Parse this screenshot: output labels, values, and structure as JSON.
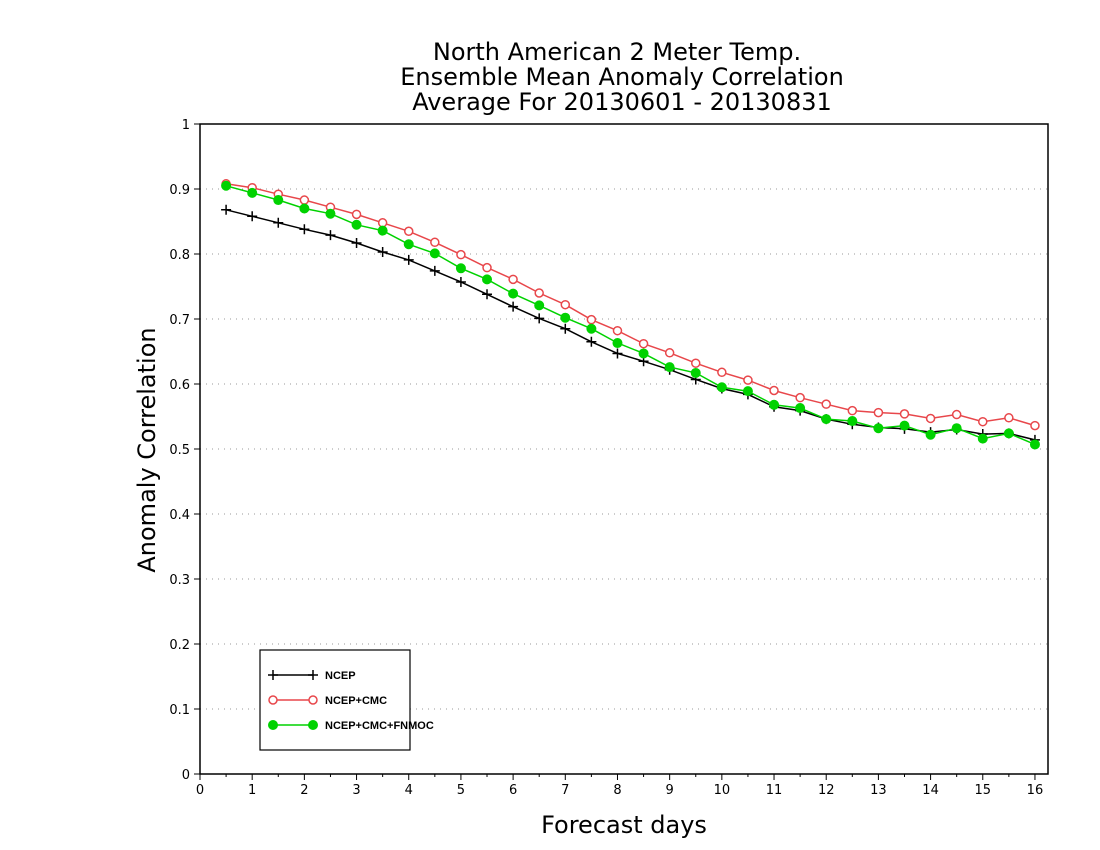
{
  "chart_data": {
    "type": "line",
    "title": [
      "North American 2 Meter Temp.",
      "Ensemble Mean Anomaly Correlation",
      "Average For 20130601 - 20130831"
    ],
    "xlabel": "Forecast days",
    "ylabel": "Anomaly Correlation",
    "xlim": [
      0,
      16.25
    ],
    "ylim": [
      0,
      1
    ],
    "x_ticks": [
      0,
      1,
      2,
      3,
      4,
      5,
      6,
      7,
      8,
      9,
      10,
      11,
      12,
      13,
      14,
      15,
      16
    ],
    "y_ticks": [
      0,
      0.1,
      0.2,
      0.3,
      0.4,
      0.5,
      0.6,
      0.7,
      0.8,
      0.9,
      1
    ],
    "y_tick_labels": [
      "0",
      "0.1",
      "0.2",
      "0.3",
      "0.4",
      "0.5",
      "0.6",
      "0.7",
      "0.8",
      "0.9",
      "1"
    ],
    "grid": "horizontal dotted",
    "legend_position": "bottom-left",
    "x": [
      0.5,
      1,
      1.5,
      2,
      2.5,
      3,
      3.5,
      4,
      4.5,
      5,
      5.5,
      6,
      6.5,
      7,
      7.5,
      8,
      8.5,
      9,
      9.5,
      10,
      10.5,
      11,
      11.5,
      12,
      12.5,
      13,
      13.5,
      14,
      14.5,
      15,
      15.5,
      16
    ],
    "series": [
      {
        "name": "NCEP",
        "color": "#000000",
        "marker": "plus",
        "values": [
          0.868,
          0.858,
          0.848,
          0.838,
          0.829,
          0.817,
          0.803,
          0.791,
          0.774,
          0.757,
          0.738,
          0.719,
          0.701,
          0.685,
          0.665,
          0.647,
          0.635,
          0.622,
          0.607,
          0.593,
          0.584,
          0.565,
          0.559,
          0.546,
          0.538,
          0.533,
          0.531,
          0.526,
          0.53,
          0.523,
          0.524,
          0.514
        ]
      },
      {
        "name": "NCEP+CMC",
        "color": "#e8474b",
        "marker": "open-circle",
        "values": [
          0.908,
          0.902,
          0.892,
          0.883,
          0.872,
          0.861,
          0.848,
          0.835,
          0.818,
          0.799,
          0.779,
          0.761,
          0.74,
          0.722,
          0.699,
          0.682,
          0.662,
          0.648,
          0.632,
          0.618,
          0.606,
          0.59,
          0.579,
          0.569,
          0.559,
          0.556,
          0.554,
          0.547,
          0.553,
          0.542,
          0.548,
          0.536
        ]
      },
      {
        "name": "NCEP+CMC+FNMOC",
        "color": "#00d200",
        "marker": "filled-circle",
        "values": [
          0.905,
          0.894,
          0.883,
          0.87,
          0.862,
          0.845,
          0.836,
          0.815,
          0.801,
          0.778,
          0.761,
          0.739,
          0.721,
          0.702,
          0.685,
          0.663,
          0.647,
          0.626,
          0.617,
          0.595,
          0.589,
          0.568,
          0.563,
          0.546,
          0.543,
          0.532,
          0.536,
          0.522,
          0.532,
          0.516,
          0.524,
          0.507
        ]
      }
    ]
  }
}
